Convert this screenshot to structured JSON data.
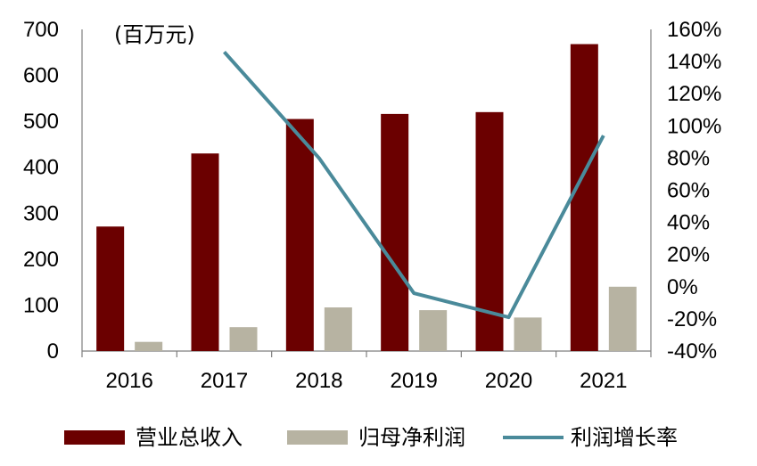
{
  "chart_data": {
    "type": "bar",
    "unit_label": "(百万元)",
    "categories": [
      "2016",
      "2017",
      "2018",
      "2019",
      "2020",
      "2021"
    ],
    "series": [
      {
        "name": "营业总收入",
        "kind": "bar",
        "axis": "left",
        "color": "#6b0000",
        "values": [
          271,
          430,
          505,
          516,
          520,
          668
        ]
      },
      {
        "name": "归母净利润",
        "kind": "bar",
        "axis": "left",
        "color": "#b7b3a2",
        "values": [
          20,
          52,
          95,
          89,
          73,
          140
        ]
      },
      {
        "name": "利润增长率",
        "kind": "line",
        "axis": "right",
        "color": "#4a8a9a",
        "values": [
          null,
          146,
          80,
          -4,
          -19,
          94
        ]
      }
    ],
    "y_left": {
      "min": 0,
      "max": 700,
      "ticks": [
        0,
        100,
        200,
        300,
        400,
        500,
        600,
        700
      ]
    },
    "y_right": {
      "min": -40,
      "max": 160,
      "ticks": [
        "-40%",
        "-20%",
        "0%",
        "20%",
        "40%",
        "60%",
        "80%",
        "100%",
        "120%",
        "140%",
        "160%"
      ]
    },
    "grid": false,
    "legend_position": "bottom"
  }
}
